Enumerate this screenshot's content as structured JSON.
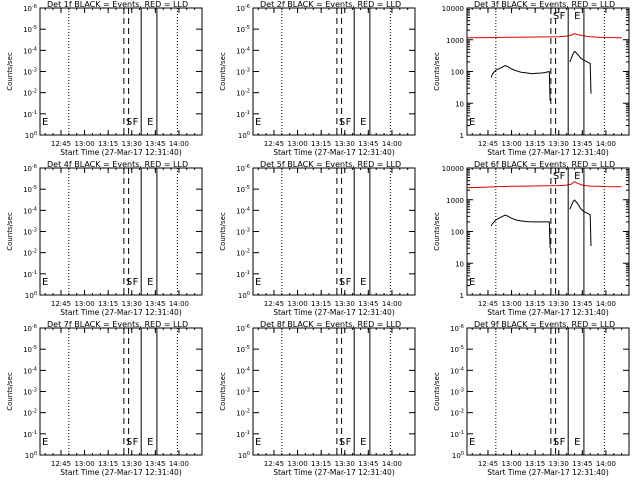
{
  "x_axis": {
    "label": "Start Time (27-Mar-17 12:31:40)",
    "tick_labels": [
      "12:45",
      "13:00",
      "13:15",
      "13:30",
      "13:45",
      "14:00"
    ],
    "minor_tick_interval_minutes": 5
  },
  "y_axis": {
    "label": "Counts/sec",
    "empty_tick_labels": [
      "10^0",
      "10^-1",
      "10^-2",
      "10^-3",
      "10^-4",
      "10^-5",
      "10^-6"
    ],
    "log_tick_labels": [
      "1",
      "10",
      "100",
      "1000",
      "10000"
    ],
    "log_range": [
      1,
      10000
    ]
  },
  "markers": {
    "E": "E",
    "S": "S",
    "F": "F",
    "E2": "E"
  },
  "colors": {
    "events": "#000000",
    "lld": "#dd0000"
  },
  "chart_data": [
    {
      "type": "line",
      "title": "Det 1f BLACK = Events, RED = LLD",
      "xlabel": "Start Time (27-Mar-17 12:31:40)",
      "ylabel": "Counts/sec",
      "scale": "empty",
      "series": []
    },
    {
      "type": "line",
      "title": "Det 2f BLACK = Events, RED = LLD",
      "xlabel": "Start Time (27-Mar-17 12:31:40)",
      "ylabel": "Counts/sec",
      "scale": "empty",
      "series": []
    },
    {
      "type": "line",
      "title": "Det 3f BLACK = Events, RED = LLD",
      "xlabel": "Start Time (27-Mar-17 12:31:40)",
      "ylabel": "Counts/sec",
      "scale": "log",
      "ylim": [
        1,
        10000
      ],
      "series": [
        {
          "color": "#dd0000",
          "points": [
            [
              "12:31:40",
              1150
            ],
            [
              "12:40",
              1160
            ],
            [
              "12:50",
              1180
            ],
            [
              "13:00",
              1200
            ],
            [
              "13:10",
              1210
            ],
            [
              "13:20",
              1230
            ],
            [
              "13:30",
              1250
            ],
            [
              "13:35",
              1300
            ],
            [
              "13:38",
              1400
            ],
            [
              "13:40",
              1550
            ],
            [
              "13:42",
              1450
            ],
            [
              "13:45",
              1350
            ],
            [
              "13:50",
              1250
            ],
            [
              "13:55",
              1200
            ],
            [
              "14:00",
              1180
            ],
            [
              "14:10",
              1160
            ]
          ]
        },
        {
          "color": "#000000",
          "segments": [
            [
              [
                "12:47",
                65
              ],
              [
                "12:48",
                85
              ],
              [
                "12:50",
                110
              ],
              [
                "12:53",
                130
              ],
              [
                "12:56",
                155
              ],
              [
                "12:58",
                140
              ],
              [
                "13:00",
                120
              ],
              [
                "13:03",
                105
              ],
              [
                "13:06",
                95
              ],
              [
                "13:10",
                90
              ],
              [
                "13:13",
                85
              ],
              [
                "13:16",
                88
              ],
              [
                "13:19",
                90
              ],
              [
                "13:21",
                92
              ],
              [
                "13:24",
                100
              ],
              [
                "13:24.5",
                12
              ]
            ],
            [
              [
                "13:37",
                200
              ],
              [
                "13:39",
                350
              ],
              [
                "13:40",
                430
              ],
              [
                "13:42",
                350
              ],
              [
                "13:44",
                260
              ],
              [
                "13:46",
                230
              ],
              [
                "13:48",
                200
              ],
              [
                "13:50",
                180
              ],
              [
                "13:50.5",
                20
              ]
            ]
          ]
        }
      ]
    },
    {
      "type": "line",
      "title": "Det 4f BLACK = Events, RED = LLD",
      "xlabel": "Start Time (27-Mar-17 12:31:40)",
      "ylabel": "Counts/sec",
      "scale": "empty",
      "series": []
    },
    {
      "type": "line",
      "title": "Det 5f BLACK = Events, RED = LLD",
      "xlabel": "Start Time (27-Mar-17 12:31:40)",
      "ylabel": "Counts/sec",
      "scale": "empty",
      "series": []
    },
    {
      "type": "line",
      "title": "Det 6f BLACK = Events, RED = LLD",
      "xlabel": "Start Time (27-Mar-17 12:31:40)",
      "ylabel": "Counts/sec",
      "scale": "log",
      "ylim": [
        1,
        10000
      ],
      "series": [
        {
          "color": "#dd0000",
          "points": [
            [
              "12:31:40",
              2400
            ],
            [
              "12:40",
              2450
            ],
            [
              "12:50",
              2550
            ],
            [
              "13:00",
              2650
            ],
            [
              "13:10",
              2700
            ],
            [
              "13:20",
              2750
            ],
            [
              "13:30",
              2800
            ],
            [
              "13:35",
              2900
            ],
            [
              "13:38",
              3100
            ],
            [
              "13:40",
              3700
            ],
            [
              "13:42",
              3300
            ],
            [
              "13:45",
              2900
            ],
            [
              "13:50",
              2700
            ],
            [
              "13:55",
              2650
            ],
            [
              "14:00",
              2600
            ],
            [
              "14:10",
              2550
            ]
          ]
        },
        {
          "color": "#000000",
          "segments": [
            [
              [
                "12:47",
                150
              ],
              [
                "12:48",
                180
              ],
              [
                "12:50",
                230
              ],
              [
                "12:53",
                280
              ],
              [
                "12:56",
                330
              ],
              [
                "12:58",
                300
              ],
              [
                "13:00",
                260
              ],
              [
                "13:03",
                230
              ],
              [
                "13:06",
                215
              ],
              [
                "13:10",
                205
              ],
              [
                "13:13",
                200
              ],
              [
                "13:16",
                200
              ],
              [
                "13:19",
                200
              ],
              [
                "13:21",
                200
              ],
              [
                "13:24",
                200
              ],
              [
                "13:24.5",
                30
              ]
            ],
            [
              [
                "13:37",
                500
              ],
              [
                "13:39",
                850
              ],
              [
                "13:40",
                980
              ],
              [
                "13:42",
                760
              ],
              [
                "13:44",
                520
              ],
              [
                "13:46",
                420
              ],
              [
                "13:48",
                380
              ],
              [
                "13:50",
                330
              ],
              [
                "13:50.5",
                35
              ]
            ]
          ]
        }
      ]
    },
    {
      "type": "line",
      "title": "Det 7f BLACK = Events, RED = LLD",
      "xlabel": "Start Time (27-Mar-17 12:31:40)",
      "ylabel": "Counts/sec",
      "scale": "empty",
      "series": []
    },
    {
      "type": "line",
      "title": "Det 8f BLACK = Events, RED = LLD",
      "xlabel": "Start Time (27-Mar-17 12:31:40)",
      "ylabel": "Counts/sec",
      "scale": "empty",
      "series": []
    },
    {
      "type": "line",
      "title": "Det 9f BLACK = Events, RED = LLD",
      "xlabel": "Start Time (27-Mar-17 12:31:40)",
      "ylabel": "Counts/sec",
      "scale": "empty",
      "series": []
    }
  ]
}
